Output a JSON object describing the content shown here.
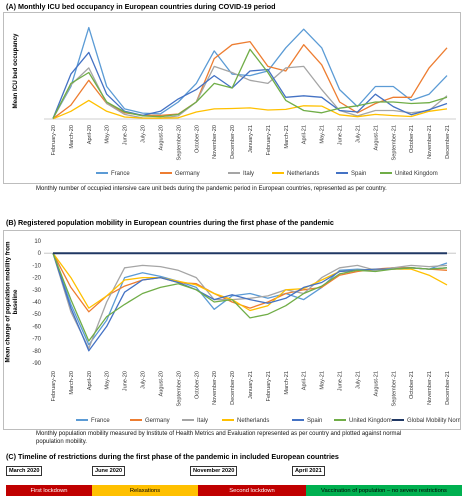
{
  "panelA": {
    "title": "(A) Monthly ICU bed occupancy in European countries during COVID-19 period",
    "caption": "Monthly number of occupied intensive care unit beds during the pandemic period in European countries, represented as per country."
  },
  "panelB": {
    "title": "(B) Registered population mobility in European countries during the first phase of the pandemic",
    "caption": "Monthly population mobility measured by Institute of Health Metrics and Evaluation represented as per country and plotted against normal population mobility."
  },
  "panelC": {
    "title": "(C) Timeline of restrictions during the first phase of the pandemic in included European countries",
    "milestones": [
      "March 2020",
      "June 2020",
      "November 2020",
      "April 2021"
    ],
    "phases": [
      {
        "label": "First lockdown",
        "color": "#c00000",
        "text_color": "#ffffff"
      },
      {
        "label": "Relaxations",
        "color": "#ffc000",
        "text_color": "#000000"
      },
      {
        "label": "Second lockdown",
        "color": "#c00000",
        "text_color": "#ffffff"
      },
      {
        "label": "Vaccination of population – no severe restrictions",
        "color": "#00b050",
        "text_color": "#000000"
      }
    ]
  },
  "chart_data": [
    {
      "type": "line",
      "title": "",
      "xlabel": "",
      "ylabel": "Mean ICU bed occupancy",
      "y_tick_labels_visible": false,
      "grid": false,
      "legend": "bottom",
      "categories": [
        "February-20",
        "March-20",
        "April-20",
        "May-20",
        "June-20",
        "July-20",
        "August-20",
        "September-20",
        "October-20",
        "November-20",
        "December-20",
        "January-21",
        "February-21",
        "March-21",
        "April-21",
        "May-21",
        "June-21",
        "July-21",
        "August-21",
        "September-21",
        "October-21",
        "November-21",
        "December-21"
      ],
      "series": [
        {
          "name": "France",
          "color": "#5b9bd5",
          "values": [
            50,
            2100,
            5900,
            2100,
            650,
            380,
            330,
            1100,
            2300,
            4400,
            2900,
            2800,
            3100,
            4600,
            5800,
            4600,
            1900,
            800,
            2100,
            2100,
            1200,
            1600,
            2800
          ]
        },
        {
          "name": "Germany",
          "color": "#ed7d31",
          "values": [
            20,
            900,
            2500,
            1000,
            400,
            250,
            230,
            320,
            1100,
            3900,
            4800,
            5000,
            3400,
            3100,
            4800,
            3500,
            1100,
            400,
            1000,
            1400,
            1400,
            3300,
            4600
          ]
        },
        {
          "name": "Italy",
          "color": "#a5a5a5",
          "values": [
            20,
            2200,
            3300,
            1000,
            300,
            70,
            60,
            200,
            1100,
            3400,
            3000,
            2500,
            2300,
            3300,
            3400,
            1900,
            550,
            200,
            550,
            550,
            400,
            550,
            1500
          ]
        },
        {
          "name": "Netherlands",
          "color": "#ffc000",
          "values": [
            10,
            500,
            1200,
            500,
            130,
            60,
            50,
            80,
            450,
            650,
            680,
            720,
            580,
            620,
            850,
            830,
            270,
            150,
            300,
            220,
            160,
            500,
            650
          ]
        },
        {
          "name": "Spain",
          "color": "#4472c4",
          "values": [
            30,
            2900,
            4300,
            1600,
            500,
            230,
            500,
            1300,
            1900,
            2800,
            2000,
            3100,
            3200,
            1400,
            1500,
            1400,
            550,
            450,
            1600,
            800,
            280,
            600,
            1000
          ]
        },
        {
          "name": "United Kingdom",
          "color": "#70ad47",
          "values": [
            40,
            2300,
            3000,
            1100,
            450,
            200,
            150,
            300,
            1100,
            2300,
            2000,
            4500,
            3000,
            1200,
            550,
            400,
            700,
            850,
            1100,
            1100,
            1000,
            1050,
            1400
          ]
        }
      ]
    },
    {
      "type": "line",
      "title": "",
      "xlabel": "",
      "ylabel": "Mean change of population mobility from baseline",
      "ylim": [
        -90,
        10
      ],
      "yticks": [
        10,
        0,
        -10,
        -20,
        -30,
        -40,
        -50,
        -60,
        -70,
        -80,
        -90
      ],
      "grid": false,
      "legend": "bottom",
      "categories": [
        "February-20",
        "March-20",
        "April-20",
        "May-20",
        "June-20",
        "July-20",
        "August-20",
        "September-20",
        "October-20",
        "November-20",
        "December-20",
        "January-21",
        "February-21",
        "March-21",
        "April-21",
        "May-21",
        "June-21",
        "July-21",
        "August-21",
        "September-21",
        "October-21",
        "November-21",
        "December-21"
      ],
      "series": [
        {
          "name": "France",
          "color": "#5b9bd5",
          "values": [
            0,
            -42,
            -75,
            -55,
            -20,
            -16,
            -19,
            -23,
            -28,
            -46,
            -35,
            -33,
            -37,
            -33,
            -38,
            -28,
            -14,
            -13,
            -14,
            -12,
            -12,
            -13,
            -8
          ]
        },
        {
          "name": "Germany",
          "color": "#ed7d31",
          "values": [
            0,
            -28,
            -48,
            -35,
            -27,
            -22,
            -20,
            -24,
            -25,
            -33,
            -40,
            -45,
            -40,
            -33,
            -30,
            -28,
            -18,
            -15,
            -13,
            -12,
            -12,
            -13,
            -14
          ]
        },
        {
          "name": "Italy",
          "color": "#a5a5a5",
          "values": [
            0,
            -48,
            -78,
            -40,
            -12,
            -10,
            -11,
            -14,
            -20,
            -38,
            -38,
            -37,
            -35,
            -30,
            -33,
            -20,
            -12,
            -10,
            -14,
            -12,
            -10,
            -11,
            -10
          ]
        },
        {
          "name": "Netherlands",
          "color": "#ffc000",
          "values": [
            0,
            -20,
            -45,
            -35,
            -22,
            -20,
            -20,
            -23,
            -26,
            -33,
            -38,
            -47,
            -43,
            -30,
            -29,
            -22,
            -15,
            -14,
            -13,
            -13,
            -13,
            -18,
            -26
          ]
        },
        {
          "name": "Spain",
          "color": "#4472c4",
          "values": [
            0,
            -45,
            -80,
            -60,
            -32,
            -22,
            -20,
            -24,
            -30,
            -38,
            -34,
            -38,
            -41,
            -37,
            -28,
            -24,
            -15,
            -14,
            -13,
            -13,
            -12,
            -13,
            -12
          ]
        },
        {
          "name": "United Kingdom",
          "color": "#70ad47",
          "values": [
            0,
            -38,
            -72,
            -52,
            -42,
            -33,
            -28,
            -25,
            -30,
            -40,
            -38,
            -53,
            -50,
            -43,
            -33,
            -27,
            -17,
            -14,
            -15,
            -13,
            -12,
            -13,
            -12
          ]
        },
        {
          "name": "Global Mobility Normal",
          "color": "#203864",
          "values": [
            0,
            0,
            0,
            0,
            0,
            0,
            0,
            0,
            0,
            0,
            0,
            0,
            0,
            0,
            0,
            0,
            0,
            0,
            0,
            0,
            0,
            0,
            0
          ]
        }
      ]
    }
  ]
}
